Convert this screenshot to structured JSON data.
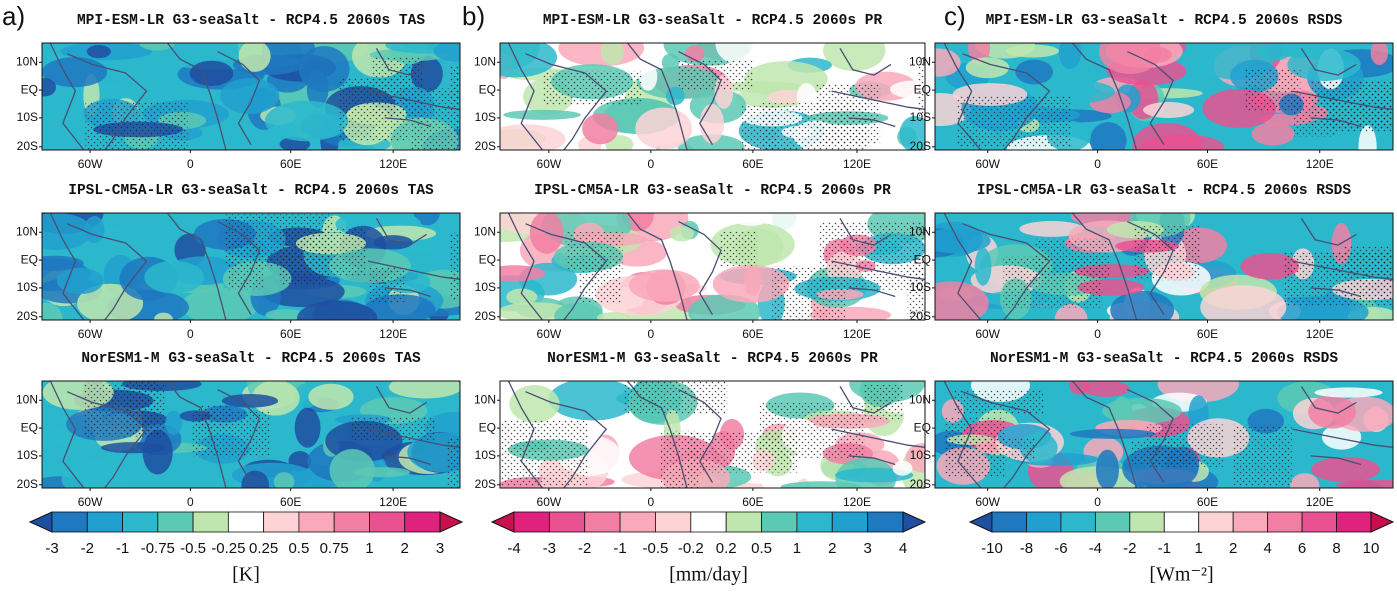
{
  "columns": [
    {
      "label": "a)",
      "panels": [
        {
          "title": "MPI-ESM-LR G3-seaSalt - RCP4.5 2060s TAS"
        },
        {
          "title": "IPSL-CM5A-LR G3-seaSalt - RCP4.5 2060s TAS"
        },
        {
          "title": "NorESM1-M G3-seaSalt - RCP4.5 2060s TAS"
        }
      ],
      "colorbar": {
        "labels": [
          "-3",
          "-2",
          "-1",
          "-0.75",
          "-0.5",
          "-0.25",
          "0.25",
          "0.5",
          "0.75",
          "1",
          "2",
          "3"
        ],
        "colors": [
          "#1f4fa0",
          "#1f78c0",
          "#21a0cf",
          "#2bb8cc",
          "#5cc9b4",
          "#bfe6ae",
          "#ffffff",
          "#fdd3d6",
          "#f9a9ba",
          "#f27fa3",
          "#ea5191",
          "#e0217d",
          "#c8104f"
        ],
        "unit": "[K]"
      }
    },
    {
      "label": "b)",
      "panels": [
        {
          "title": "MPI-ESM-LR G3-seaSalt - RCP4.5 2060s PR"
        },
        {
          "title": "IPSL-CM5A-LR G3-seaSalt - RCP4.5 2060s PR"
        },
        {
          "title": "NorESM1-M G3-seaSalt - RCP4.5 2060s PR"
        }
      ],
      "colorbar": {
        "labels": [
          "-4",
          "-3",
          "-2",
          "-1",
          "-0.5",
          "-0.2",
          "0.2",
          "0.5",
          "1",
          "2",
          "3",
          "4"
        ],
        "colors": [
          "#c8104f",
          "#e0217d",
          "#ea5191",
          "#f27fa3",
          "#f9a9ba",
          "#fdd3d6",
          "#ffffff",
          "#bfe6ae",
          "#5cc9b4",
          "#2bb8cc",
          "#21a0cf",
          "#1f78c0",
          "#1f4fa0"
        ],
        "unit": "[mm/day]"
      }
    },
    {
      "label": "c)",
      "panels": [
        {
          "title": "MPI-ESM-LR G3-seaSalt - RCP4.5 2060s RSDS"
        },
        {
          "title": "IPSL-CM5A-LR G3-seaSalt - RCP4.5 2060s RSDS"
        },
        {
          "title": "NorESM1-M G3-seaSalt - RCP4.5 2060s RSDS"
        }
      ],
      "colorbar": {
        "labels": [
          "-10",
          "-8",
          "-6",
          "-4",
          "-2",
          "-1",
          "1",
          "2",
          "4",
          "6",
          "8",
          "10"
        ],
        "colors": [
          "#1f4fa0",
          "#1f78c0",
          "#21a0cf",
          "#2bb8cc",
          "#5cc9b4",
          "#bfe6ae",
          "#ffffff",
          "#fdd3d6",
          "#f9a9ba",
          "#f27fa3",
          "#ea5191",
          "#e0217d",
          "#c8104f"
        ],
        "unit": "[Wm⁻²]"
      }
    }
  ],
  "lat_labels": [
    "10N",
    "EQ",
    "10S",
    "20S"
  ],
  "lon_labels": [
    "60W",
    "0",
    "60E",
    "120E"
  ]
}
